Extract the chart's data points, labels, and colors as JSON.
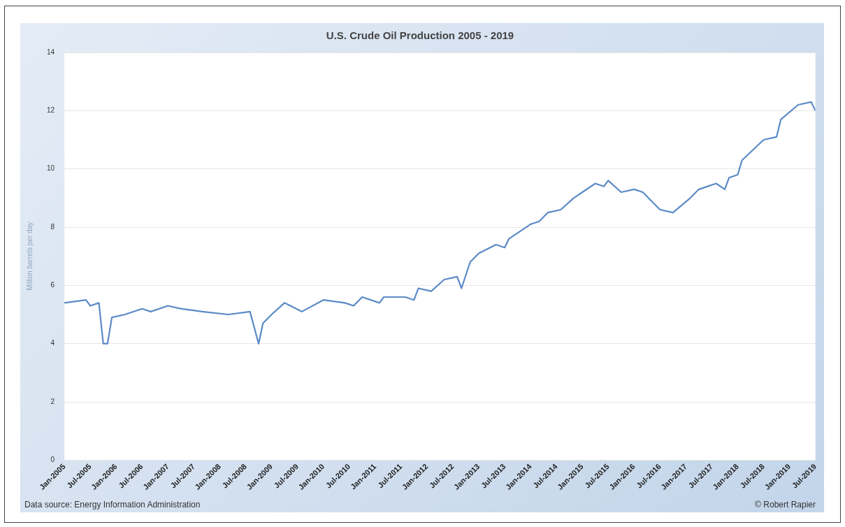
{
  "chart_data": {
    "type": "line",
    "title": "U.S. Crude Oil Production 2005 - 2019",
    "ylabel": "Million barrels per day",
    "annotations": [
      "Data source: Energy Information Administration",
      "© Robert Rapier"
    ],
    "series": [
      {
        "color": "#5b8ac6",
        "x": [
          "2005-01",
          "2005-06",
          "2005-07",
          "2005-09",
          "2005-10",
          "2005-11",
          "2005-12",
          "2006-03",
          "2006-07",
          "2006-09",
          "2007-01",
          "2007-04",
          "2007-09",
          "2008-03",
          "2008-08",
          "2008-10",
          "2008-11",
          "2009-01",
          "2009-04",
          "2009-08",
          "2010-01",
          "2010-06",
          "2010-08",
          "2010-10",
          "2011-02",
          "2011-03",
          "2011-08",
          "2011-10",
          "2011-11",
          "2012-02",
          "2012-05",
          "2012-08",
          "2012-09",
          "2012-11",
          "2013-01",
          "2013-05",
          "2013-07",
          "2013-08",
          "2013-10",
          "2014-01",
          "2014-03",
          "2014-05",
          "2014-08",
          "2014-11",
          "2015-01",
          "2015-04",
          "2015-06",
          "2015-07",
          "2015-10",
          "2016-01",
          "2016-03",
          "2016-07",
          "2016-10",
          "2017-02",
          "2017-04",
          "2017-08",
          "2017-10",
          "2017-11",
          "2018-01",
          "2018-02",
          "2018-07",
          "2018-10",
          "2018-11",
          "2019-03",
          "2019-06",
          "2019-07"
        ],
        "values": [
          5.4,
          5.5,
          5.3,
          5.4,
          4.0,
          4.0,
          4.9,
          5.0,
          5.2,
          5.1,
          5.3,
          5.2,
          5.1,
          5.0,
          5.1,
          4.0,
          4.7,
          5.0,
          5.4,
          5.1,
          5.5,
          5.4,
          5.3,
          5.6,
          5.4,
          5.6,
          5.6,
          5.5,
          5.9,
          5.8,
          6.2,
          6.3,
          5.9,
          6.8,
          7.1,
          7.4,
          7.3,
          7.6,
          7.8,
          8.1,
          8.2,
          8.5,
          8.6,
          9.0,
          9.2,
          9.5,
          9.4,
          9.6,
          9.2,
          9.3,
          9.2,
          8.6,
          8.5,
          9.0,
          9.3,
          9.5,
          9.3,
          9.7,
          9.8,
          10.3,
          11.0,
          11.1,
          11.7,
          12.2,
          12.3,
          12.0
        ]
      }
    ],
    "xlim": [
      "2005-01",
      "2019-07"
    ],
    "xticks": [
      {
        "value": "2005-01",
        "label": "Jan-2005"
      },
      {
        "value": "2005-07",
        "label": "Jul-2005"
      },
      {
        "value": "2006-01",
        "label": "Jan-2006"
      },
      {
        "value": "2006-07",
        "label": "Jul-2006"
      },
      {
        "value": "2007-01",
        "label": "Jan-2007"
      },
      {
        "value": "2007-07",
        "label": "Jul-2007"
      },
      {
        "value": "2008-01",
        "label": "Jan-2008"
      },
      {
        "value": "2008-07",
        "label": "Jul-2008"
      },
      {
        "value": "2009-01",
        "label": "Jan-2009"
      },
      {
        "value": "2009-07",
        "label": "Jul-2009"
      },
      {
        "value": "2010-01",
        "label": "Jan-2010"
      },
      {
        "value": "2010-07",
        "label": "Jul-2010"
      },
      {
        "value": "2011-01",
        "label": "Jan-2011"
      },
      {
        "value": "2011-07",
        "label": "Jul-2011"
      },
      {
        "value": "2012-01",
        "label": "Jan-2012"
      },
      {
        "value": "2012-07",
        "label": "Jul-2012"
      },
      {
        "value": "2013-01",
        "label": "Jan-2013"
      },
      {
        "value": "2013-07",
        "label": "Jul-2013"
      },
      {
        "value": "2014-01",
        "label": "Jan-2014"
      },
      {
        "value": "2014-07",
        "label": "Jul-2014"
      },
      {
        "value": "2015-01",
        "label": "Jan-2015"
      },
      {
        "value": "2015-07",
        "label": "Jul-2015"
      },
      {
        "value": "2016-01",
        "label": "Jan-2016"
      },
      {
        "value": "2016-07",
        "label": "Jul-2016"
      },
      {
        "value": "2017-01",
        "label": "Jan-2017"
      },
      {
        "value": "2017-07",
        "label": "Jul-2017"
      },
      {
        "value": "2018-01",
        "label": "Jan-2018"
      },
      {
        "value": "2018-07",
        "label": "Jul-2018"
      },
      {
        "value": "2019-01",
        "label": "Jan-2019"
      },
      {
        "value": "2019-07",
        "label": "Jul-2019"
      }
    ],
    "ylim": [
      0,
      14
    ],
    "yticks": [
      0,
      2,
      4,
      6,
      8,
      10,
      12,
      14
    ],
    "grid": "y",
    "legend": false,
    "marker": "none",
    "line_style": "solid"
  }
}
